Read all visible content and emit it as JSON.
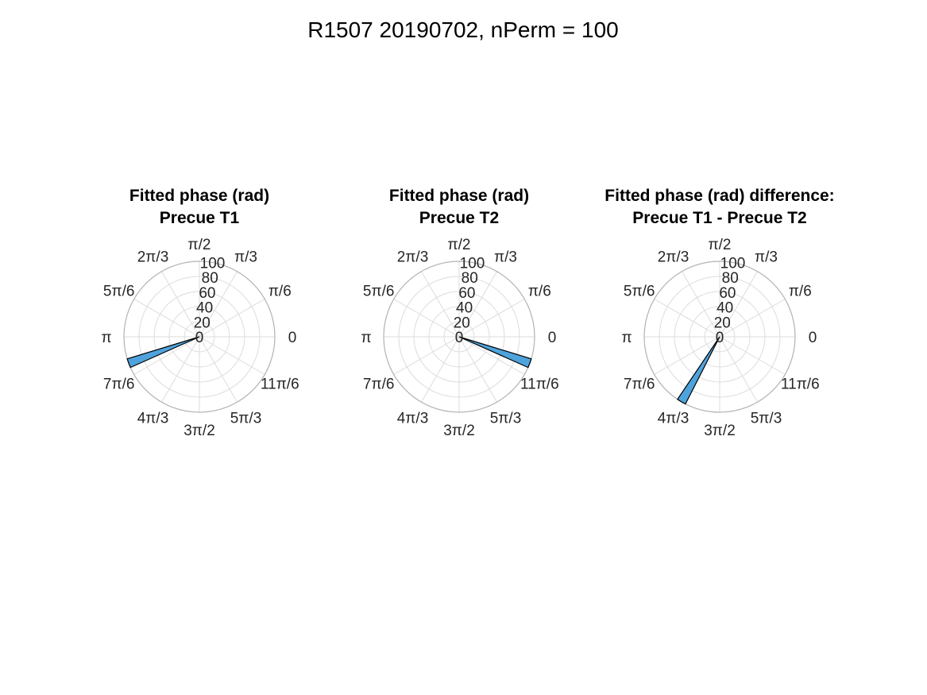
{
  "figure": {
    "title": "R1507 20190702, nPerm = 100"
  },
  "chart_data": [
    {
      "type": "polar-histogram",
      "title_lines": [
        "Fitted phase (rad)",
        "Precue T1"
      ],
      "rlim": [
        0,
        100
      ],
      "rticks": [
        "0",
        "20",
        "40",
        "60",
        "80",
        "100"
      ],
      "theta_ticks": [
        "0",
        "π/6",
        "π/3",
        "π/2",
        "2π/3",
        "5π/6",
        "π",
        "7π/6",
        "4π/3",
        "3π/2",
        "5π/3",
        "11π/6"
      ],
      "grid": true,
      "color": "#4fa3dc",
      "bins": [
        {
          "theta_start_deg": 197,
          "theta_end_deg": 204,
          "count": 100
        }
      ]
    },
    {
      "type": "polar-histogram",
      "title_lines": [
        "Fitted phase (rad)",
        "Precue T2"
      ],
      "rlim": [
        0,
        100
      ],
      "rticks": [
        "0",
        "20",
        "40",
        "60",
        "80",
        "100"
      ],
      "theta_ticks": [
        "0",
        "π/6",
        "π/3",
        "π/2",
        "2π/3",
        "5π/6",
        "π",
        "7π/6",
        "4π/3",
        "3π/2",
        "5π/3",
        "11π/6"
      ],
      "grid": true,
      "color": "#4fa3dc",
      "bins": [
        {
          "theta_start_deg": 336,
          "theta_end_deg": 343,
          "count": 100
        }
      ]
    },
    {
      "type": "polar-histogram",
      "title_lines": [
        "Fitted phase (rad) difference:",
        "Precue T1 - Precue T2"
      ],
      "rlim": [
        0,
        100
      ],
      "rticks": [
        "0",
        "20",
        "40",
        "60",
        "80",
        "100"
      ],
      "theta_ticks": [
        "0",
        "π/6",
        "π/3",
        "π/2",
        "2π/3",
        "5π/6",
        "π",
        "7π/6",
        "4π/3",
        "3π/2",
        "5π/3",
        "11π/6"
      ],
      "grid": true,
      "color": "#4fa3dc",
      "bins": [
        {
          "theta_start_deg": 236,
          "theta_end_deg": 243,
          "count": 100
        }
      ]
    }
  ]
}
